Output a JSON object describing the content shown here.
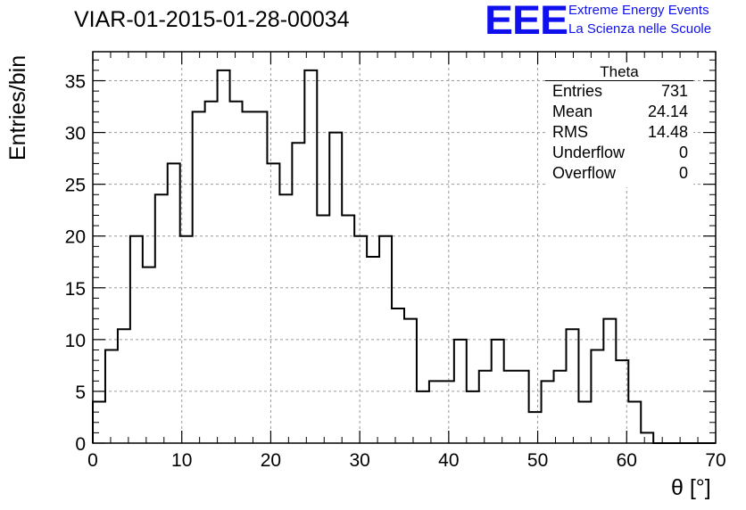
{
  "run_title": "VIAR-01-2015-01-28-00034",
  "logo": {
    "mark": "EEE",
    "line1": "Extreme Energy Events",
    "line2": "La Scienza nelle Scuole",
    "color": "#1010ee"
  },
  "stats_box": {
    "title": "Theta",
    "rows": [
      {
        "key": "Entries",
        "value": "731"
      },
      {
        "key": "Mean",
        "value": "24.14"
      },
      {
        "key": "RMS",
        "value": "14.48"
      },
      {
        "key": "Underflow",
        "value": "0"
      },
      {
        "key": "Overflow",
        "value": "0"
      }
    ]
  },
  "chart_data": {
    "type": "histogram",
    "title": "VIAR-01-2015-01-28-00034",
    "xlabel": "θ [°]",
    "ylabel": "Entries/bin",
    "xlim": [
      0,
      70
    ],
    "ylim": [
      0,
      37.8
    ],
    "grid": true,
    "bin_width": 1.4,
    "bin_edges_start": 0,
    "values": [
      4,
      9,
      11,
      20,
      17,
      24,
      27,
      20,
      32,
      33,
      36,
      33,
      32,
      32,
      27,
      24,
      29,
      36,
      22,
      30,
      22,
      20,
      18,
      20,
      13,
      12,
      5,
      6,
      6,
      10,
      5,
      7,
      10,
      7,
      7,
      3,
      6,
      7,
      11,
      4,
      9,
      12,
      8,
      4,
      1,
      0,
      0,
      0,
      0,
      0
    ],
    "x_ticks": [
      "0",
      "10",
      "20",
      "30",
      "40",
      "50",
      "60",
      "70"
    ],
    "x_tick_values": [
      0,
      10,
      20,
      30,
      40,
      50,
      60,
      70
    ],
    "y_ticks": [
      "0",
      "5",
      "10",
      "15",
      "20",
      "25",
      "30",
      "35"
    ],
    "y_tick_values": [
      0,
      5,
      10,
      15,
      20,
      25,
      30,
      35
    ]
  }
}
